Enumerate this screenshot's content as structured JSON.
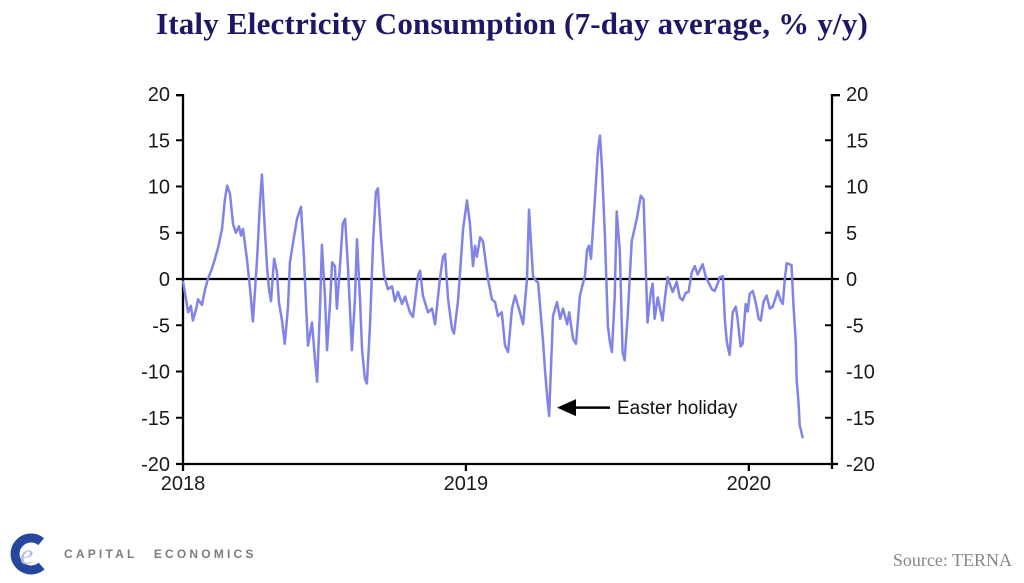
{
  "title": "Italy Electricity Consumption (7-day average, % y/y)",
  "footer": {
    "brand": "CAPITAL ECONOMICS",
    "source": "Source: TERNA",
    "logo_dark_color": "#26479e",
    "logo_light_color": "#b3bae9",
    "logo_letter": "e"
  },
  "chart_data": {
    "type": "line",
    "title": "Italy Electricity Consumption (7-day average, % y/y)",
    "xlabel": "",
    "ylabel": "",
    "xlim": [
      2018.0,
      2020.294
    ],
    "ylim": [
      -20,
      20
    ],
    "grid": false,
    "zero_line": true,
    "line_color": "#8083e8",
    "axis_color": "#000000",
    "yticks": [
      20,
      15,
      10,
      5,
      0,
      -5,
      -10,
      -15,
      -20
    ],
    "yticks_right": [
      20,
      15,
      10,
      5,
      0,
      -5,
      -10,
      -15,
      -20
    ],
    "xticks": [
      {
        "value": 2018,
        "label": "2018"
      },
      {
        "value": 2019,
        "label": "2019"
      },
      {
        "value": 2020,
        "label": "2020"
      }
    ],
    "annotation": {
      "text": "Easter holiday",
      "x": 2019.322,
      "y": -13.9
    },
    "series": [
      {
        "name": "Italy electricity consumption (7-day average, % y/y)",
        "color": "#8083e8",
        "points": [
          [
            2018.0,
            -0.3
          ],
          [
            2018.007,
            -1.5
          ],
          [
            2018.018,
            -3.6
          ],
          [
            2018.028,
            -2.9
          ],
          [
            2018.035,
            -4.5
          ],
          [
            2018.046,
            -3.3
          ],
          [
            2018.053,
            -2.2
          ],
          [
            2018.067,
            -2.8
          ],
          [
            2018.078,
            -1.1
          ],
          [
            2018.088,
            0.0
          ],
          [
            2018.102,
            1.1
          ],
          [
            2018.113,
            2.2
          ],
          [
            2018.124,
            3.4
          ],
          [
            2018.138,
            5.4
          ],
          [
            2018.148,
            8.6
          ],
          [
            2018.156,
            10.1
          ],
          [
            2018.166,
            9.2
          ],
          [
            2018.177,
            5.9
          ],
          [
            2018.187,
            5.0
          ],
          [
            2018.198,
            5.7
          ],
          [
            2018.205,
            4.7
          ],
          [
            2018.212,
            5.4
          ],
          [
            2018.226,
            2.2
          ],
          [
            2018.237,
            -1.1
          ],
          [
            2018.247,
            -4.6
          ],
          [
            2018.262,
            2.2
          ],
          [
            2018.272,
            8.3
          ],
          [
            2018.279,
            11.3
          ],
          [
            2018.29,
            5.1
          ],
          [
            2018.297,
            1.4
          ],
          [
            2018.304,
            -1.1
          ],
          [
            2018.311,
            -2.4
          ],
          [
            2018.322,
            2.2
          ],
          [
            2018.332,
            0.8
          ],
          [
            2018.339,
            -2.5
          ],
          [
            2018.35,
            -4.5
          ],
          [
            2018.36,
            -7.0
          ],
          [
            2018.371,
            -3.0
          ],
          [
            2018.378,
            1.8
          ],
          [
            2018.392,
            4.5
          ],
          [
            2018.403,
            6.5
          ],
          [
            2018.417,
            7.8
          ],
          [
            2018.428,
            2.0
          ],
          [
            2018.435,
            -3.0
          ],
          [
            2018.442,
            -7.2
          ],
          [
            2018.456,
            -4.7
          ],
          [
            2018.467,
            -8.8
          ],
          [
            2018.474,
            -11.1
          ],
          [
            2018.484,
            -3.5
          ],
          [
            2018.491,
            3.7
          ],
          [
            2018.502,
            -2.0
          ],
          [
            2018.509,
            -7.7
          ],
          [
            2018.52,
            -2.5
          ],
          [
            2018.527,
            1.8
          ],
          [
            2018.537,
            1.4
          ],
          [
            2018.544,
            -3.2
          ],
          [
            2018.555,
            1.5
          ],
          [
            2018.565,
            6.0
          ],
          [
            2018.573,
            6.5
          ],
          [
            2018.583,
            1.4
          ],
          [
            2018.597,
            -7.7
          ],
          [
            2018.608,
            -2.0
          ],
          [
            2018.615,
            4.3
          ],
          [
            2018.626,
            -2.5
          ],
          [
            2018.633,
            -7.7
          ],
          [
            2018.643,
            -10.8
          ],
          [
            2018.65,
            -11.3
          ],
          [
            2018.661,
            -5.0
          ],
          [
            2018.672,
            4.0
          ],
          [
            2018.682,
            9.4
          ],
          [
            2018.689,
            9.8
          ],
          [
            2018.7,
            4.5
          ],
          [
            2018.71,
            0.5
          ],
          [
            2018.724,
            -1.1
          ],
          [
            2018.739,
            -0.8
          ],
          [
            2018.749,
            -2.4
          ],
          [
            2018.76,
            -1.4
          ],
          [
            2018.774,
            -2.7
          ],
          [
            2018.785,
            -1.9
          ],
          [
            2018.802,
            -3.6
          ],
          [
            2018.813,
            -4.1
          ],
          [
            2018.831,
            0.4
          ],
          [
            2018.838,
            0.9
          ],
          [
            2018.848,
            -1.8
          ],
          [
            2018.866,
            -3.6
          ],
          [
            2018.88,
            -3.2
          ],
          [
            2018.891,
            -4.9
          ],
          [
            2018.908,
            0.0
          ],
          [
            2018.919,
            2.4
          ],
          [
            2018.926,
            2.7
          ],
          [
            2018.937,
            -2.2
          ],
          [
            2018.951,
            -5.4
          ],
          [
            2018.958,
            -5.9
          ],
          [
            2018.972,
            -2.4
          ],
          [
            2018.99,
            5.4
          ],
          [
            2019.004,
            8.5
          ],
          [
            2019.014,
            6.0
          ],
          [
            2019.025,
            1.4
          ],
          [
            2019.032,
            3.6
          ],
          [
            2019.039,
            2.4
          ],
          [
            2019.05,
            4.5
          ],
          [
            2019.06,
            4.1
          ],
          [
            2019.078,
            0.0
          ],
          [
            2019.092,
            -2.2
          ],
          [
            2019.103,
            -2.5
          ],
          [
            2019.113,
            -4.0
          ],
          [
            2019.127,
            -3.6
          ],
          [
            2019.138,
            -7.2
          ],
          [
            2019.149,
            -7.9
          ],
          [
            2019.163,
            -3.2
          ],
          [
            2019.174,
            -1.8
          ],
          [
            2019.191,
            -3.6
          ],
          [
            2019.202,
            -4.9
          ],
          [
            2019.216,
            0.0
          ],
          [
            2019.223,
            7.5
          ],
          [
            2019.237,
            0.3
          ],
          [
            2019.248,
            -0.2
          ],
          [
            2019.255,
            -0.4
          ],
          [
            2019.273,
            -6.8
          ],
          [
            2019.28,
            -10.0
          ],
          [
            2019.287,
            -12.6
          ],
          [
            2019.294,
            -14.8
          ],
          [
            2019.308,
            -4.0
          ],
          [
            2019.322,
            -2.5
          ],
          [
            2019.333,
            -4.3
          ],
          [
            2019.343,
            -3.2
          ],
          [
            2019.358,
            -4.9
          ],
          [
            2019.365,
            -3.6
          ],
          [
            2019.379,
            -6.5
          ],
          [
            2019.389,
            -7.0
          ],
          [
            2019.403,
            -1.8
          ],
          [
            2019.421,
            0.4
          ],
          [
            2019.428,
            3.1
          ],
          [
            2019.435,
            3.6
          ],
          [
            2019.442,
            2.2
          ],
          [
            2019.456,
            8.6
          ],
          [
            2019.467,
            14.0
          ],
          [
            2019.474,
            15.5
          ],
          [
            2019.481,
            12.0
          ],
          [
            2019.491,
            5.0
          ],
          [
            2019.502,
            -5.1
          ],
          [
            2019.509,
            -6.8
          ],
          [
            2019.516,
            -7.9
          ],
          [
            2019.526,
            -2.0
          ],
          [
            2019.533,
            7.3
          ],
          [
            2019.544,
            3.0
          ],
          [
            2019.554,
            -7.9
          ],
          [
            2019.561,
            -8.8
          ],
          [
            2019.572,
            -4.0
          ],
          [
            2019.586,
            4.1
          ],
          [
            2019.604,
            6.5
          ],
          [
            2019.618,
            9.0
          ],
          [
            2019.628,
            8.6
          ],
          [
            2019.642,
            -4.7
          ],
          [
            2019.653,
            -1.5
          ],
          [
            2019.66,
            -0.5
          ],
          [
            2019.667,
            -4.3
          ],
          [
            2019.678,
            -2.0
          ],
          [
            2019.685,
            -3.0
          ],
          [
            2019.695,
            -4.5
          ],
          [
            2019.706,
            -1.5
          ],
          [
            2019.713,
            0.2
          ],
          [
            2019.72,
            -0.5
          ],
          [
            2019.731,
            -1.4
          ],
          [
            2019.745,
            -0.3
          ],
          [
            2019.756,
            -2.0
          ],
          [
            2019.766,
            -2.3
          ],
          [
            2019.777,
            -1.5
          ],
          [
            2019.787,
            -1.4
          ],
          [
            2019.798,
            0.7
          ],
          [
            2019.809,
            1.4
          ],
          [
            2019.819,
            0.5
          ],
          [
            2019.826,
            0.9
          ],
          [
            2019.837,
            1.6
          ],
          [
            2019.848,
            0.2
          ],
          [
            2019.855,
            -0.2
          ],
          [
            2019.869,
            -1.1
          ],
          [
            2019.879,
            -1.3
          ],
          [
            2019.89,
            -0.5
          ],
          [
            2019.897,
            0.2
          ],
          [
            2019.908,
            0.3
          ],
          [
            2019.915,
            -4.3
          ],
          [
            2019.922,
            -6.8
          ],
          [
            2019.932,
            -8.2
          ],
          [
            2019.943,
            -3.6
          ],
          [
            2019.954,
            -3.0
          ],
          [
            2019.961,
            -4.5
          ],
          [
            2019.971,
            -7.3
          ],
          [
            2019.978,
            -7.0
          ],
          [
            2019.989,
            -2.7
          ],
          [
            2019.996,
            -3.5
          ],
          [
            2020.003,
            -1.6
          ],
          [
            2020.014,
            -1.3
          ],
          [
            2020.024,
            -2.5
          ],
          [
            2020.035,
            -4.3
          ],
          [
            2020.042,
            -4.5
          ],
          [
            2020.052,
            -2.5
          ],
          [
            2020.063,
            -1.8
          ],
          [
            2020.074,
            -3.2
          ],
          [
            2020.084,
            -3.0
          ],
          [
            2020.095,
            -2.0
          ],
          [
            2020.102,
            -1.3
          ],
          [
            2020.112,
            -2.3
          ],
          [
            2020.12,
            -2.7
          ],
          [
            2020.127,
            0.0
          ],
          [
            2020.134,
            1.7
          ],
          [
            2020.144,
            1.6
          ],
          [
            2020.151,
            1.5
          ],
          [
            2020.158,
            -2.9
          ],
          [
            2020.166,
            -6.8
          ],
          [
            2020.169,
            -10.8
          ],
          [
            2020.176,
            -13.5
          ],
          [
            2020.18,
            -15.8
          ],
          [
            2020.187,
            -16.7
          ],
          [
            2020.19,
            -17.1
          ]
        ]
      }
    ]
  }
}
